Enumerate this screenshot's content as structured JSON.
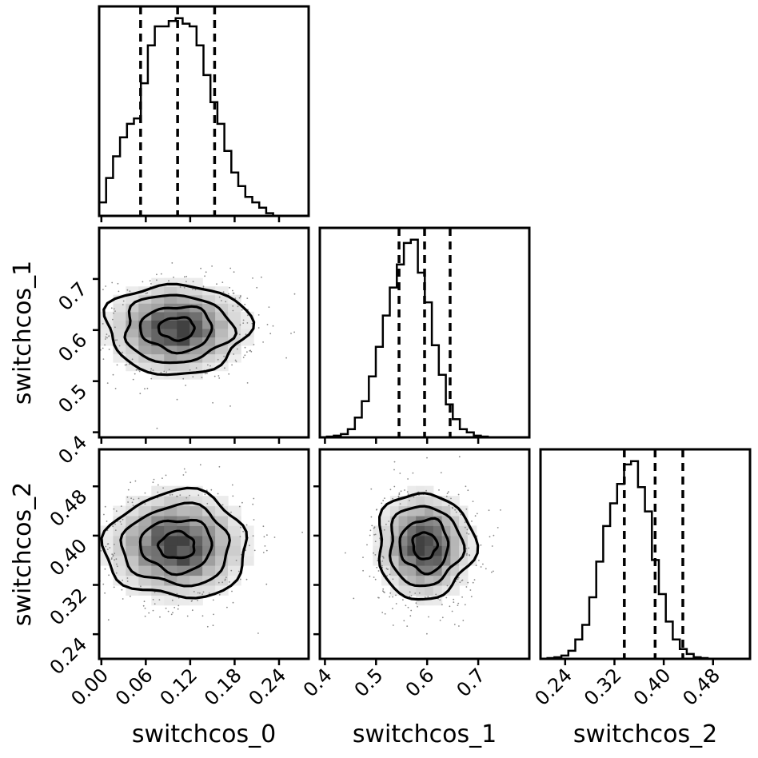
{
  "chart_data": {
    "type": "corner",
    "parameters": [
      "switchcos_0",
      "switchcos_1",
      "switchcos_2"
    ],
    "axis_labels": [
      "switchcos_0",
      "switchcos_1",
      "switchcos_2"
    ],
    "ranges": [
      [
        -0.003,
        0.28
      ],
      [
        0.39,
        0.8
      ],
      [
        0.2,
        0.54
      ]
    ],
    "ticks": [
      {
        "values": [
          0.0,
          0.06,
          0.12,
          0.18,
          0.24
        ],
        "labels": [
          "0.00",
          "0.06",
          "0.12",
          "0.18",
          "0.24"
        ]
      },
      {
        "values": [
          0.4,
          0.5,
          0.6,
          0.7
        ],
        "labels": [
          "0.4",
          "0.5",
          "0.6",
          "0.7"
        ]
      },
      {
        "values": [
          0.24,
          0.32,
          0.4,
          0.48
        ],
        "labels": [
          "0.24",
          "0.32",
          "0.40",
          "0.48"
        ]
      }
    ],
    "quantiles": [
      [
        0.053,
        0.103,
        0.153
      ],
      [
        0.545,
        0.595,
        0.645
      ],
      [
        0.336,
        0.386,
        0.431
      ]
    ],
    "marginals": [
      {
        "bin_start": -0.003,
        "bin_width": 0.0094,
        "counts": [
          5,
          14,
          22,
          29,
          34,
          36,
          49,
          63,
          70,
          70,
          72,
          73,
          71,
          70,
          63,
          52,
          42,
          34,
          24,
          16,
          11,
          7,
          5,
          3,
          1,
          0
        ]
      },
      {
        "bin_start": 0.39,
        "bin_width": 0.0137,
        "counts": [
          0,
          0.5,
          1,
          2,
          5,
          12,
          22,
          37,
          55,
          74,
          91,
          105,
          118,
          120,
          100,
          82,
          56,
          38,
          20,
          11,
          5,
          3,
          1,
          0.5,
          0,
          0
        ]
      },
      {
        "bin_start": 0.2,
        "bin_width": 0.0113,
        "counts": [
          0,
          0.5,
          1,
          2,
          5,
          12,
          21,
          38,
          60,
          82,
          96,
          108,
          120,
          122,
          106,
          91,
          61,
          40,
          23,
          12,
          6,
          3,
          1,
          0.5,
          0,
          0
        ]
      }
    ],
    "joint": [
      {
        "x_param": "switchcos_0",
        "y_param": "switchcos_1",
        "mean": [
          0.102,
          0.603
        ],
        "std": [
          0.046,
          0.044
        ],
        "corr": 0.0
      },
      {
        "x_param": "switchcos_0",
        "y_param": "switchcos_2",
        "mean": [
          0.102,
          0.384
        ],
        "std": [
          0.046,
          0.043
        ],
        "corr": 0.0
      },
      {
        "x_param": "switchcos_1",
        "y_param": "switchcos_2",
        "mean": [
          0.595,
          0.384
        ],
        "std": [
          0.045,
          0.043
        ],
        "corr": 0.0
      }
    ],
    "contour_levels_sigma": [
      0.5,
      1.0,
      1.5,
      2.0
    ],
    "grid": false,
    "legend": "none"
  }
}
